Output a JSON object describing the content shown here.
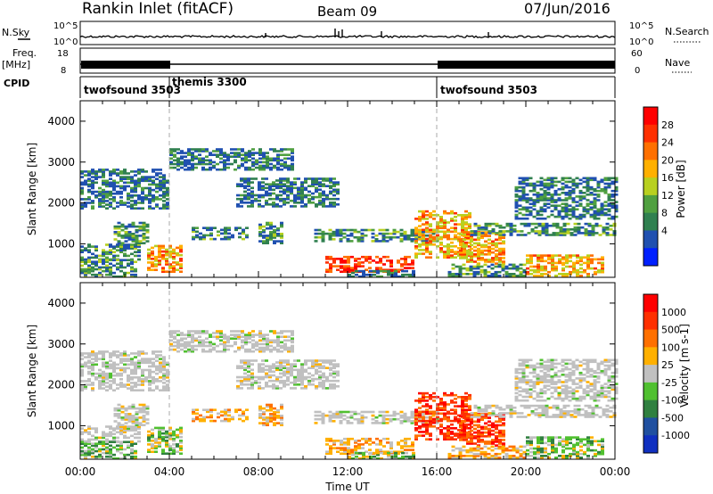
{
  "header": {
    "station": "Rankin Inlet (fitACF)",
    "beam": "Beam 09",
    "date": "07/Jun/2016"
  },
  "noise_panel": {
    "left_label": "N.Sky",
    "right_label": "N.Search",
    "left_ticks": [
      "10^5",
      "10^0"
    ],
    "right_ticks": [
      "10^5",
      "10^0"
    ]
  },
  "freq_panel": {
    "left_label_top": "Freq.",
    "left_label_bottom": "[MHz]",
    "right_label": "Nave",
    "left_ticks": [
      "18",
      "8"
    ],
    "right_ticks": [
      "60",
      "0"
    ]
  },
  "cpid": {
    "label": "CPID",
    "segments": [
      {
        "name": "twofsound 3503",
        "start_h": 0,
        "end_h": 4
      },
      {
        "name": "themis 3300",
        "start_h": 4,
        "end_h": 16
      },
      {
        "name": "twofsound 3503",
        "start_h": 16,
        "end_h": 24
      }
    ]
  },
  "chart_data": [
    {
      "type": "heatmap",
      "title": "",
      "xlabel": "Time UT",
      "ylabel": "Slant Range [km]",
      "xlim_hours": [
        0,
        24
      ],
      "ylim_km": [
        180,
        4500
      ],
      "x_ticks": [
        "00:00",
        "04:00",
        "08:00",
        "12:00",
        "16:00",
        "20:00",
        "00:00"
      ],
      "y_ticks": [
        1000,
        2000,
        3000,
        4000
      ],
      "colorbar": {
        "label": "Power [dB]",
        "ticks": [
          "28",
          "24",
          "20",
          "16",
          "12",
          "8",
          "4"
        ],
        "colors": [
          "#0020ff",
          "#2050b0",
          "#308050",
          "#50a040",
          "#b8d020",
          "#ffb000",
          "#ff7000",
          "#ff3000",
          "#ff0000"
        ]
      }
    },
    {
      "type": "heatmap",
      "title": "",
      "xlabel": "Time UT",
      "ylabel": "Slant Range [km]",
      "xlim_hours": [
        0,
        24
      ],
      "ylim_km": [
        180,
        4500
      ],
      "x_ticks": [
        "00:00",
        "04:00",
        "08:00",
        "12:00",
        "16:00",
        "20:00",
        "00:00"
      ],
      "y_ticks": [
        1000,
        2000,
        3000,
        4000
      ],
      "colorbar": {
        "label": "Velocity [m s-1]",
        "ticks": [
          "1000",
          "500",
          "100",
          "25",
          "-25",
          "-100",
          "-500",
          "-1000"
        ],
        "colors": [
          "#1030c0",
          "#2050a0",
          "#308040",
          "#50c030",
          "#c0c0c0",
          "#ffb000",
          "#ff7000",
          "#ff3000",
          "#ff0000"
        ]
      }
    }
  ]
}
